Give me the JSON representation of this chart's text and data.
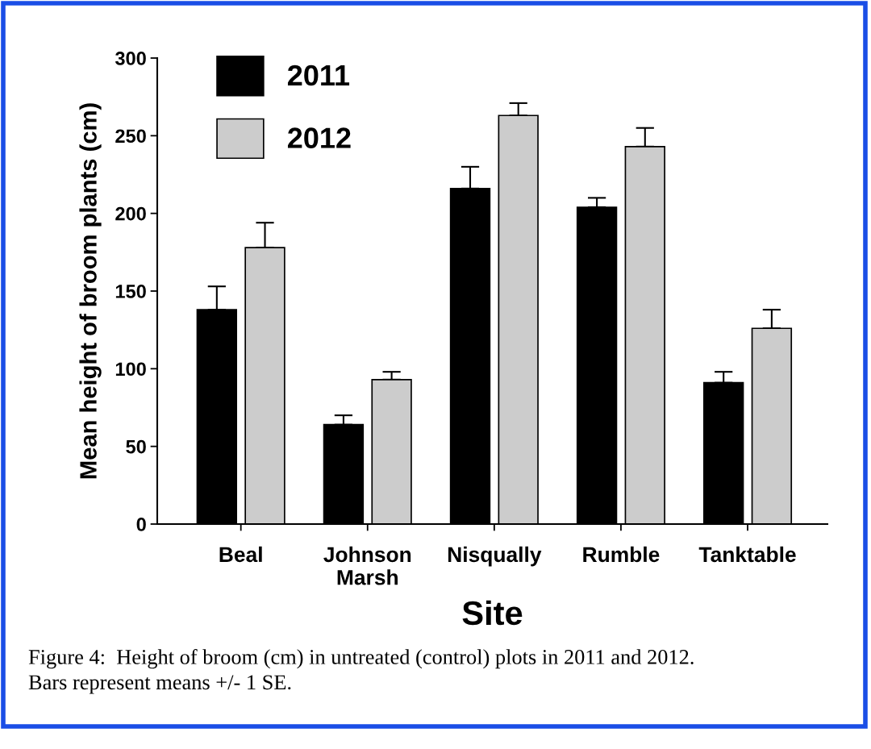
{
  "chart_data": {
    "type": "bar",
    "categories": [
      "Beal",
      "Johnson\nMarsh",
      "Nisqually",
      "Rumble",
      "Tanktable"
    ],
    "series": [
      {
        "name": "2011",
        "color": "#000000",
        "values": [
          138,
          64,
          216,
          204,
          91
        ],
        "errors": [
          [
            138,
            153
          ],
          [
            64,
            70
          ],
          [
            216,
            230
          ],
          [
            204,
            210
          ],
          [
            91,
            98
          ]
        ]
      },
      {
        "name": "2012",
        "color": "#cccccc",
        "values": [
          178,
          93,
          263,
          243,
          126
        ],
        "errors": [
          [
            178,
            194
          ],
          [
            93,
            98
          ],
          [
            263,
            271
          ],
          [
            243,
            255
          ],
          [
            126,
            138
          ]
        ]
      }
    ],
    "xlabel": "Site",
    "ylabel": "Mean height of broom plants (cm)",
    "ylim": [
      0,
      300
    ],
    "yticks": [
      0,
      50,
      100,
      150,
      200,
      250,
      300
    ],
    "grid": false,
    "legend": "top left",
    "annotations": [
      "Figure 4:  Height of broom (cm) in untreated (control) plots in 2011 and 2012.\nBars represent means +/- 1 SE."
    ]
  }
}
